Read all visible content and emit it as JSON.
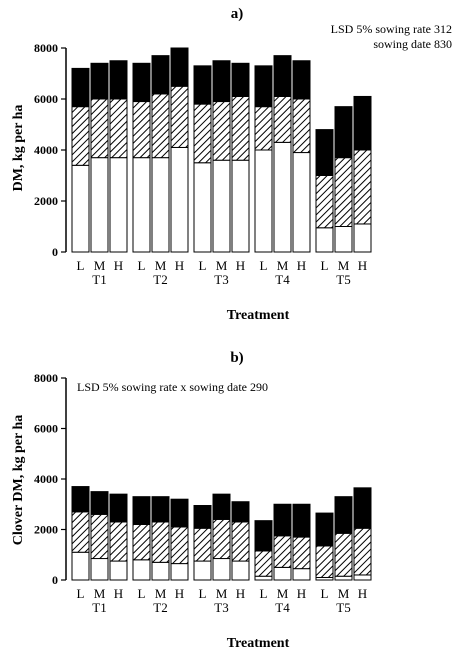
{
  "chart_data": [
    {
      "type": "bar",
      "stacked": true,
      "title": "a)",
      "ylabel": "DM, kg per ha",
      "xlabel": "Treatment",
      "ylim": [
        0,
        8000
      ],
      "yticks": [
        "0",
        "2000",
        "4000",
        "6000",
        "8000"
      ],
      "annotation": [
        "LSD 5% sowing rate 312",
        "sowing date 830"
      ],
      "groups": [
        "T1",
        "T2",
        "T3",
        "T4",
        "T5"
      ],
      "categories": [
        "L",
        "M",
        "H"
      ],
      "series": [
        {
          "style": "open",
          "values": [
            [
              3400,
              3700,
              3700
            ],
            [
              3700,
              3700,
              4100
            ],
            [
              3500,
              3600,
              3600
            ],
            [
              4000,
              4300,
              3900
            ],
            [
              950,
              1000,
              1100
            ]
          ]
        },
        {
          "style": "hatched",
          "values": [
            [
              2300,
              2300,
              2300
            ],
            [
              2200,
              2500,
              2400
            ],
            [
              2300,
              2300,
              2500
            ],
            [
              1700,
              1800,
              2100
            ],
            [
              2050,
              2700,
              2900
            ]
          ]
        },
        {
          "style": "solid",
          "values": [
            [
              1500,
              1400,
              1500
            ],
            [
              1500,
              1500,
              1500
            ],
            [
              1500,
              1600,
              1300
            ],
            [
              1600,
              1600,
              1500
            ],
            [
              1800,
              2000,
              2100
            ]
          ]
        }
      ]
    },
    {
      "type": "bar",
      "stacked": true,
      "title": "b)",
      "ylabel": "Clover DM, kg per ha",
      "xlabel": "Treatment",
      "ylim": [
        0,
        8000
      ],
      "yticks": [
        "0",
        "2000",
        "4000",
        "6000",
        "8000"
      ],
      "annotation": [
        "LSD 5% sowing rate x sowing date 290"
      ],
      "groups": [
        "T1",
        "T2",
        "T3",
        "T4",
        "T5"
      ],
      "categories": [
        "L",
        "M",
        "H"
      ],
      "series": [
        {
          "style": "open",
          "values": [
            [
              1100,
              850,
              750
            ],
            [
              800,
              700,
              650
            ],
            [
              750,
              850,
              750
            ],
            [
              150,
              500,
              450
            ],
            [
              100,
              150,
              200
            ]
          ]
        },
        {
          "style": "hatched",
          "values": [
            [
              1600,
              1750,
              1550
            ],
            [
              1400,
              1600,
              1450
            ],
            [
              1300,
              1550,
              1550
            ],
            [
              1000,
              1250,
              1250
            ],
            [
              1250,
              1700,
              1850
            ]
          ]
        },
        {
          "style": "solid",
          "values": [
            [
              1000,
              900,
              1100
            ],
            [
              1100,
              1000,
              1100
            ],
            [
              900,
              1000,
              800
            ],
            [
              1200,
              1250,
              1300
            ],
            [
              1300,
              1450,
              1600
            ]
          ]
        }
      ]
    }
  ]
}
